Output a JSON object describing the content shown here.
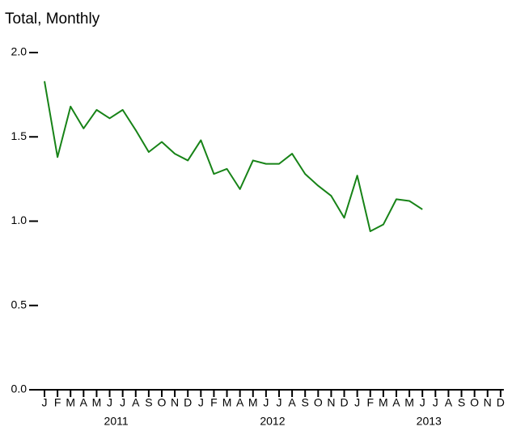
{
  "chart_data": {
    "type": "line",
    "title": "Total, Monthly",
    "categories": [
      "J",
      "F",
      "M",
      "A",
      "M",
      "J",
      "J",
      "A",
      "S",
      "O",
      "N",
      "D",
      "J",
      "F",
      "M",
      "A",
      "M",
      "J",
      "J",
      "A",
      "S",
      "O",
      "N",
      "D",
      "J",
      "F",
      "M",
      "A",
      "M",
      "J",
      "J",
      "A",
      "S",
      "O",
      "N",
      "D"
    ],
    "years": [
      "2011",
      "2012",
      "2013"
    ],
    "values": [
      1.83,
      1.38,
      1.68,
      1.55,
      1.66,
      1.61,
      1.66,
      1.54,
      1.41,
      1.47,
      1.4,
      1.36,
      1.48,
      1.28,
      1.31,
      1.19,
      1.36,
      1.34,
      1.34,
      1.4,
      1.28,
      1.21,
      1.15,
      1.02,
      1.27,
      0.94,
      0.98,
      1.13,
      1.12,
      1.07,
      null,
      null,
      null,
      null,
      null,
      null
    ],
    "color": "#178317",
    "ylim": [
      0,
      2
    ],
    "yticks": [
      {
        "value": 0,
        "label": "0.0"
      },
      {
        "value": 0.5,
        "label": "0.5"
      },
      {
        "value": 1,
        "label": "1.0"
      },
      {
        "value": 1.5,
        "label": "1.5"
      },
      {
        "value": 2,
        "label": "2.0"
      }
    ]
  }
}
